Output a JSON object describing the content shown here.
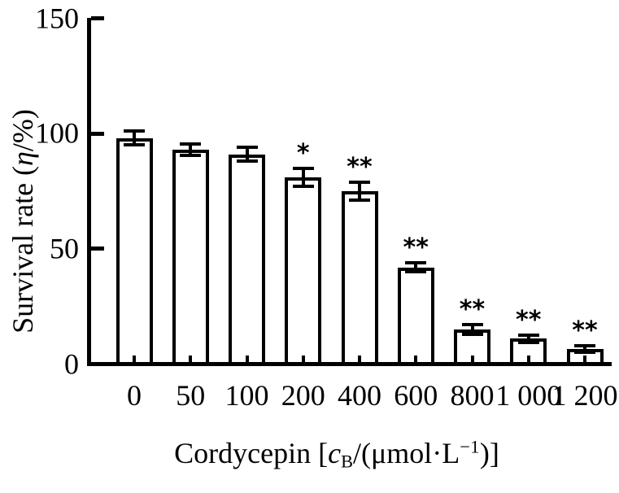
{
  "figure": {
    "background_color": "#ffffff",
    "ink_color": "#000000"
  },
  "chart_data": {
    "type": "bar",
    "title": "",
    "categories": [
      "0",
      "50",
      "100",
      "200",
      "400",
      "600",
      "800",
      "1 000",
      "1 200"
    ],
    "values": [
      98,
      93,
      91,
      81,
      75,
      42,
      15,
      11,
      6.5
    ],
    "errors": [
      3,
      2.5,
      3,
      4,
      4,
      2,
      2,
      1.5,
      1.5
    ],
    "significance": [
      "",
      "",
      "",
      "*",
      "**",
      "**",
      "**",
      "**",
      "**"
    ],
    "ylim": [
      0,
      150
    ],
    "yticks": [
      0,
      50,
      100,
      150
    ],
    "grid": false,
    "legend": null,
    "bar_fill": "#ffffff",
    "bar_border": "#000000",
    "xlabel": {
      "plain": "Cordycepin [cB/(μmol·L−1)]",
      "prefix": "Cordycepin [",
      "symbol_italic": "c",
      "symbol_sub": "B",
      "mid": "/(μmol·L",
      "sup": "−1",
      "suffix": ")]"
    },
    "ylabel": {
      "plain": "Survival rate (η/%)",
      "prefix": "Survival rate (",
      "symbol_italic": "η",
      "suffix": "/%)"
    }
  }
}
